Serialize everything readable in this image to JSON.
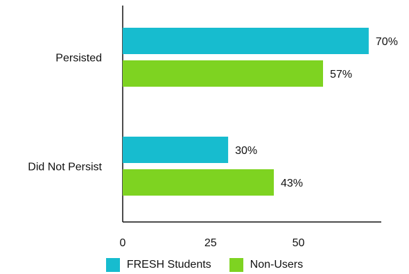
{
  "chart_data": {
    "type": "bar",
    "orientation": "horizontal",
    "categories": [
      "Persisted",
      "Did Not Persist"
    ],
    "series": [
      {
        "name": "FRESH Students",
        "values": [
          70,
          30
        ],
        "labels": [
          "70%",
          "30%"
        ],
        "color": "#17BCCF"
      },
      {
        "name": "Non-Users",
        "values": [
          57,
          43
        ],
        "labels": [
          "57%",
          "43%"
        ],
        "color": "#7ED321"
      }
    ],
    "xticks": [
      0,
      25,
      50
    ],
    "xlim": [
      0,
      75
    ],
    "legend_position": "bottom",
    "grid": false,
    "title": "",
    "xlabel": "",
    "ylabel": ""
  }
}
